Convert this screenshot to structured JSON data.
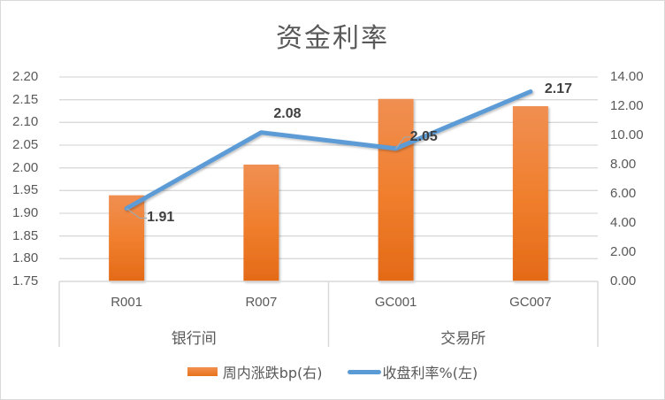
{
  "chart_data": {
    "type": "bar+line",
    "title": "资金利率",
    "categories": [
      "R001",
      "R007",
      "GC001",
      "GC007"
    ],
    "groups": [
      {
        "label": "银行间",
        "categories": [
          "R001",
          "R007"
        ]
      },
      {
        "label": "交易所",
        "categories": [
          "GC001",
          "GC007"
        ]
      }
    ],
    "series": [
      {
        "name": "周内涨跌bp(右)",
        "type": "bar",
        "axis": "right",
        "color": "#ed7d31",
        "values": [
          5.9,
          8.0,
          12.5,
          12.0
        ]
      },
      {
        "name": "收盘利率%(左)",
        "type": "line",
        "axis": "left",
        "color": "#5b9bd5",
        "values": [
          1.91,
          2.08,
          2.05,
          2.17
        ],
        "data_labels": [
          "1.91",
          "2.08",
          "2.05",
          "2.17"
        ],
        "plotted_right_axis_equiv": [
          5.0,
          10.2,
          9.1,
          13.0
        ]
      }
    ],
    "left_axis": {
      "ticks": [
        "2.20",
        "2.15",
        "2.10",
        "2.05",
        "2.00",
        "1.95",
        "1.90",
        "1.85",
        "1.80",
        "1.75"
      ],
      "ylim": [
        1.75,
        2.2
      ]
    },
    "right_axis": {
      "ticks": [
        "14.00",
        "12.00",
        "10.00",
        "8.00",
        "6.00",
        "4.00",
        "2.00",
        "0.00"
      ],
      "ylim": [
        0,
        14
      ]
    },
    "grid": true,
    "legend_position": "bottom"
  },
  "legend": {
    "bar": "周内涨跌bp(右)",
    "line": "收盘利率%(左)"
  }
}
